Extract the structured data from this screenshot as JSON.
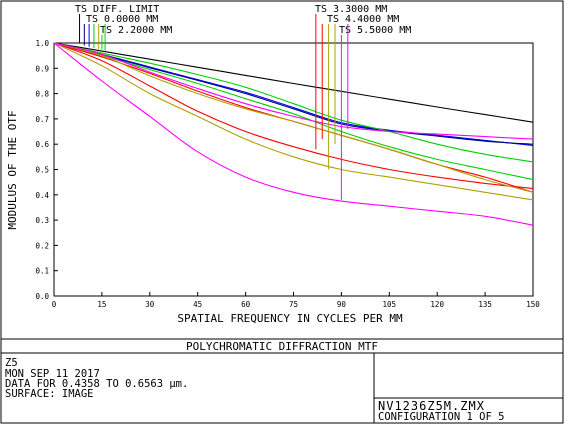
{
  "chart_data": {
    "type": "line",
    "title": "",
    "xlabel": "SPATIAL FREQUENCY IN CYCLES PER MM",
    "ylabel": "MODULUS OF THE OTF",
    "xlim": [
      0,
      150
    ],
    "ylim": [
      0,
      1
    ],
    "x_ticks": [
      0,
      15,
      30,
      45,
      60,
      75,
      90,
      105,
      120,
      135,
      150
    ],
    "x_tick_labels": [
      "0",
      "15",
      "30",
      "45",
      "60",
      "75",
      "90",
      "105",
      "120",
      "135",
      "150"
    ],
    "y_ticks": [
      0,
      0.1,
      0.2,
      0.3,
      0.4,
      0.5,
      0.6,
      0.7,
      0.8,
      0.9,
      1.0
    ],
    "y_tick_labels": [
      "0.0",
      "0.1",
      "0.2",
      "0.3",
      "0.4",
      "0.5",
      "0.6",
      "0.7",
      "0.8",
      "0.9",
      "1.0"
    ],
    "grid": false,
    "legend_placement": "top",
    "legend": [
      {
        "label": "TS DIFF. LIMIT",
        "color": "#000000",
        "x_marker": 8
      },
      {
        "label": "TS 0.0000 MM",
        "color": "#0000ff",
        "x_marker": 11
      },
      {
        "label": "TS 2.2000 MM",
        "color": "#00d000",
        "x_marker": 15
      },
      {
        "label": "TS 3.3000 MM",
        "color": "#ff0000",
        "x_marker": 82
      },
      {
        "label": "TS 4.4000 MM",
        "color": "#b0a000",
        "x_marker": 86
      },
      {
        "label": "TS 5.5000 MM",
        "color": "#ff00ff",
        "x_marker": 90
      }
    ],
    "series": [
      {
        "label": "TS DIFF. LIMIT",
        "color": "#000000",
        "x": [
          0,
          15,
          30,
          45,
          60,
          75,
          90,
          105,
          120,
          135,
          150
        ],
        "y": [
          1.0,
          0.968,
          0.936,
          0.904,
          0.872,
          0.84,
          0.809,
          0.778,
          0.747,
          0.717,
          0.687
        ]
      },
      {
        "label": "TS 0.0000 MM",
        "color": "#0000ff",
        "x": [
          0,
          15,
          30,
          45,
          60,
          75,
          90,
          105,
          120,
          135,
          150
        ],
        "y": [
          1.0,
          0.955,
          0.905,
          0.855,
          0.805,
          0.745,
          0.685,
          0.655,
          0.635,
          0.615,
          0.595
        ]
      },
      {
        "label": "TS 0.0000 MM",
        "color": "#000080",
        "x": [
          0,
          15,
          30,
          45,
          60,
          75,
          90,
          105,
          120,
          135,
          150
        ],
        "y": [
          1.0,
          0.953,
          0.902,
          0.852,
          0.8,
          0.74,
          0.68,
          0.652,
          0.632,
          0.612,
          0.6
        ]
      },
      {
        "label": "TS 2.2000 MM",
        "color": "#00d000",
        "x": [
          0,
          15,
          30,
          45,
          60,
          75,
          90,
          105,
          120,
          135,
          150
        ],
        "y": [
          1.0,
          0.96,
          0.92,
          0.875,
          0.825,
          0.76,
          0.695,
          0.65,
          0.6,
          0.56,
          0.53
        ]
      },
      {
        "label": "TS 2.2000 MM",
        "color": "#00d000",
        "x": [
          0,
          15,
          30,
          45,
          60,
          75,
          90,
          105,
          120,
          135,
          150
        ],
        "y": [
          1.0,
          0.95,
          0.895,
          0.84,
          0.78,
          0.72,
          0.65,
          0.59,
          0.54,
          0.5,
          0.46
        ]
      },
      {
        "label": "TS 3.3000 MM",
        "color": "#ff0000",
        "x": [
          0,
          15,
          30,
          45,
          60,
          75,
          90,
          105,
          120,
          135,
          150
        ],
        "y": [
          1.0,
          0.945,
          0.88,
          0.81,
          0.745,
          0.69,
          0.635,
          0.58,
          0.52,
          0.47,
          0.41
        ]
      },
      {
        "label": "TS 3.3000 MM",
        "color": "#ff0000",
        "x": [
          0,
          15,
          30,
          45,
          60,
          75,
          90,
          105,
          120,
          135,
          150
        ],
        "y": [
          1.0,
          0.93,
          0.83,
          0.73,
          0.65,
          0.59,
          0.54,
          0.5,
          0.47,
          0.445,
          0.425
        ]
      },
      {
        "label": "TS 4.4000 MM",
        "color": "#b0a000",
        "x": [
          0,
          15,
          30,
          45,
          60,
          75,
          90,
          105,
          120,
          135,
          150
        ],
        "y": [
          1.0,
          0.95,
          0.87,
          0.8,
          0.74,
          0.69,
          0.635,
          0.58,
          0.52,
          0.46,
          0.41
        ]
      },
      {
        "label": "TS 4.4000 MM",
        "color": "#b0a000",
        "x": [
          0,
          15,
          30,
          45,
          60,
          75,
          90,
          105,
          120,
          135,
          150
        ],
        "y": [
          1.0,
          0.91,
          0.8,
          0.71,
          0.62,
          0.55,
          0.5,
          0.47,
          0.44,
          0.41,
          0.38
        ]
      },
      {
        "label": "TS 5.5000 MM",
        "color": "#ff00ff",
        "x": [
          0,
          15,
          30,
          45,
          60,
          75,
          90,
          105,
          120,
          135,
          150
        ],
        "y": [
          1.0,
          0.955,
          0.885,
          0.82,
          0.76,
          0.71,
          0.67,
          0.65,
          0.64,
          0.63,
          0.62
        ]
      },
      {
        "label": "TS 5.5000 MM",
        "color": "#ff00ff",
        "x": [
          0,
          15,
          30,
          45,
          60,
          75,
          90,
          105,
          120,
          135,
          150
        ],
        "y": [
          1.0,
          0.85,
          0.71,
          0.57,
          0.47,
          0.41,
          0.375,
          0.355,
          0.335,
          0.315,
          0.28
        ]
      }
    ]
  },
  "footer": {
    "title": "POLYCHROMATIC DIFFRACTION MTF",
    "lines": [
      "Z5",
      "MON SEP 11 2017",
      "DATA FOR 0.4358 TO 0.6563 µm.",
      "SURFACE: IMAGE"
    ],
    "file": "NV1236Z5M.ZMX",
    "configuration": "CONFIGURATION 1 OF 5"
  }
}
